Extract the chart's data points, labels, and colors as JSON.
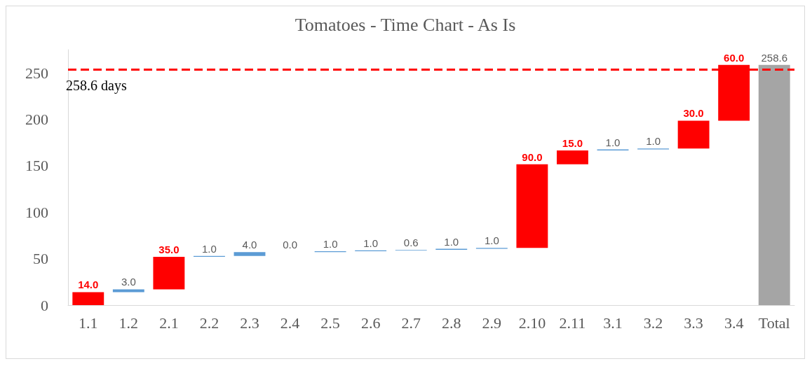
{
  "chart_data": {
    "type": "bar",
    "title": "Tomatoes - Time Chart - As Is",
    "categories": [
      "1.1",
      "1.2",
      "2.1",
      "2.2",
      "2.3",
      "2.4",
      "2.5",
      "2.6",
      "2.7",
      "2.8",
      "2.9",
      "2.10",
      "2.11",
      "3.1",
      "3.2",
      "3.3",
      "3.4",
      "Total"
    ],
    "values": [
      14,
      3,
      35,
      1,
      4,
      0,
      1,
      1,
      0.6,
      1,
      1,
      90,
      15,
      1,
      1,
      30,
      60,
      258.6
    ],
    "base": [
      0,
      14,
      17,
      52,
      53,
      57,
      57,
      58,
      59,
      59.6,
      60.6,
      61.6,
      151.6,
      166.6,
      167.6,
      168.6,
      198.6,
      0
    ],
    "colors": [
      "#ff0000",
      "#5b9bd5",
      "#ff0000",
      "#5b9bd5",
      "#5b9bd5",
      "#5b9bd5",
      "#5b9bd5",
      "#5b9bd5",
      "#5b9bd5",
      "#5b9bd5",
      "#5b9bd5",
      "#ff0000",
      "#ff0000",
      "#5b9bd5",
      "#5b9bd5",
      "#ff0000",
      "#ff0000",
      "#a5a5a5"
    ],
    "value_labels": [
      "14.0",
      "3.0",
      "35.0",
      "1.0",
      "4.0",
      "0.0",
      "1.0",
      "1.0",
      "0.6",
      "1.0",
      "1.0",
      "90.0",
      "15.0",
      "1.0",
      "1.0",
      "30.0",
      "60.0",
      "258.6"
    ],
    "ylim": [
      0,
      275
    ],
    "yticks": [
      0,
      50,
      100,
      150,
      200,
      250
    ],
    "grid": false,
    "ref_lines": [
      {
        "axis": "y",
        "value": 254,
        "label": "258.6 days",
        "color": "#ff0000",
        "line_style": "dashed"
      }
    ]
  }
}
